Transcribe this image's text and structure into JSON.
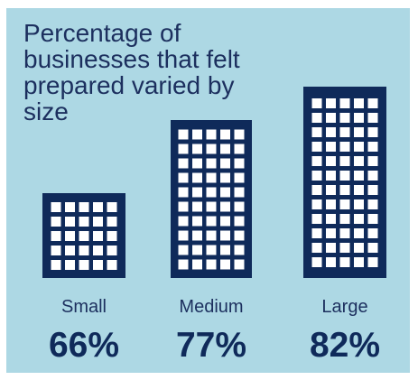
{
  "chart_data": {
    "type": "bar",
    "title": "Percentage of businesses that felt prepared varied by size",
    "categories": [
      "Small",
      "Medium",
      "Large"
    ],
    "values": [
      66,
      77,
      82
    ],
    "value_labels": [
      "66%",
      "77%",
      "82%"
    ],
    "xlabel": "",
    "ylabel": "",
    "grid": false,
    "legend": "none"
  },
  "colors": {
    "background": "#add8e4",
    "building": "#0f2a5a",
    "window": "#ffffff",
    "text": "#1c2f5e"
  },
  "icons": {
    "bar_mark": "office-building-icon"
  }
}
